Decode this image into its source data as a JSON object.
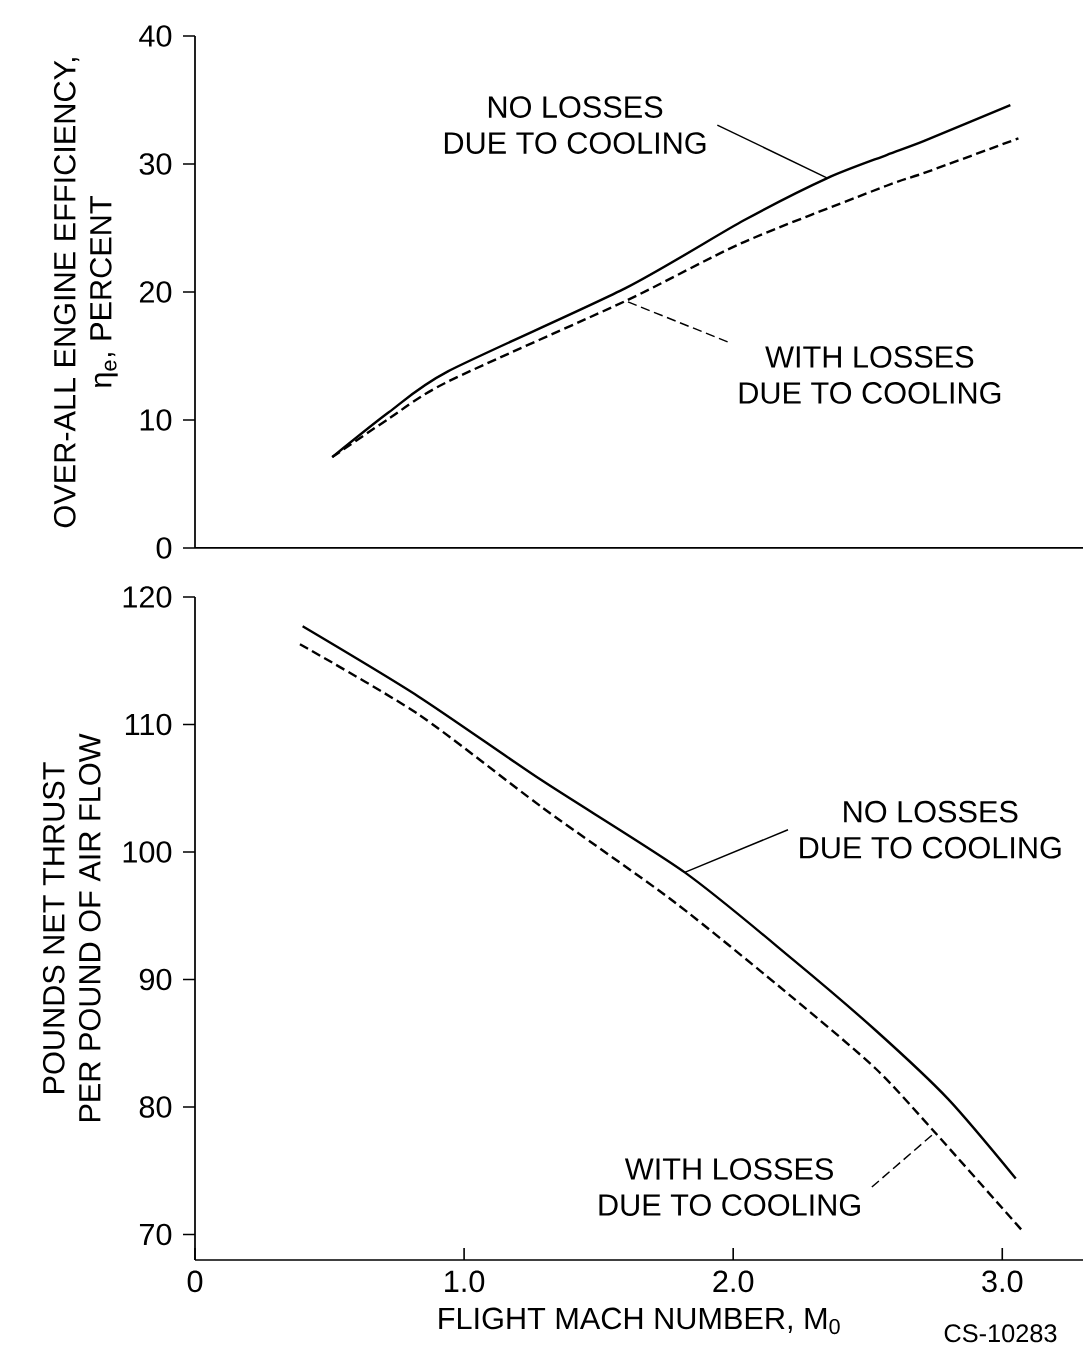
{
  "chart_data": [
    {
      "type": "line",
      "ylabel": "OVER-ALL ENGINE EFFICIENCY, η$_{e}$, PERCENT",
      "xlim": [
        0,
        3.3
      ],
      "ylim": [
        0,
        40
      ],
      "yticks": [
        0,
        10,
        20,
        30,
        40
      ],
      "tick_labels": "y",
      "series": [
        {
          "name": "NO LOSSES DUE TO COOLING",
          "color": "#000000",
          "line_style": "solid",
          "x": [
            0.51,
            0.72,
            0.94,
            1.6,
            2.04,
            2.35,
            2.57,
            2.71,
            3.03
          ],
          "values": [
            7.1,
            10.6,
            13.8,
            20.3,
            25.6,
            28.9,
            30.7,
            31.8,
            34.6
          ]
        },
        {
          "name": "WITH LOSSES DUE TO COOLING",
          "color": "#000000",
          "line_style": "dashed",
          "x": [
            0.51,
            0.72,
            0.94,
            1.6,
            2.04,
            2.57,
            2.71,
            3.06
          ],
          "values": [
            7.1,
            10.1,
            13.0,
            19.3,
            23.9,
            28.3,
            29.3,
            32.0
          ]
        }
      ]
    },
    {
      "type": "line",
      "xlabel": "FLIGHT MACH NUMBER, M$_{0}$",
      "ylabel": "POUNDS NET THRUST PER POUND OF AIR FLOW",
      "xlim": [
        0,
        3.3
      ],
      "ylim": [
        68,
        120
      ],
      "xticks": [
        0,
        {
          "value": 1,
          "label": "1.0"
        },
        {
          "value": 2,
          "label": "2.0"
        },
        {
          "value": 3,
          "label": "3.0"
        }
      ],
      "yticks": [
        70,
        80,
        90,
        100,
        110,
        120
      ],
      "annotations": [
        "CS-10283"
      ],
      "series": [
        {
          "name": "NO LOSSES DUE TO COOLING",
          "color": "#000000",
          "line_style": "solid",
          "x": [
            0.4,
            0.83,
            1.29,
            1.82,
            2.22,
            2.53,
            2.8,
            3.05
          ],
          "values": [
            117.7,
            112.2,
            105.6,
            98.4,
            91.6,
            86.0,
            80.6,
            74.4
          ]
        },
        {
          "name": "WITH LOSSES DUE TO COOLING",
          "color": "#000000",
          "line_style": "dashed",
          "x": [
            0.39,
            0.83,
            1.29,
            1.78,
            2.22,
            2.53,
            2.75,
            3.07
          ],
          "values": [
            116.3,
            110.8,
            103.5,
            96.1,
            88.6,
            83.0,
            78.0,
            70.4
          ]
        }
      ]
    }
  ]
}
